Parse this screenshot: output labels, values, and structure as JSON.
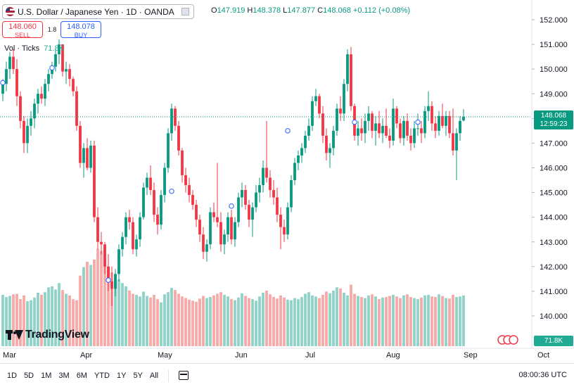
{
  "header": {
    "title": "U.S. Dollar / Japanese Yen · 1D · OANDA",
    "ohlc": {
      "o_label": "O",
      "o": "147.919",
      "h_label": "H",
      "h": "148.378",
      "l_label": "L",
      "l": "147.877",
      "c_label": "C",
      "c": "148.068",
      "change": "+0.112 (+0.08%)"
    }
  },
  "trade": {
    "sell_price": "148.060",
    "sell_label": "SELL",
    "spread": "1.8",
    "buy_price": "148.078",
    "buy_label": "BUY"
  },
  "volume_legend": {
    "label": "Vol · Ticks",
    "value": "71.8K"
  },
  "price_label": {
    "price": "148.068",
    "countdown": "12:59:23"
  },
  "volume_label": "71.8K",
  "logo_text": "TradingView",
  "bottom_bar": {
    "ranges": [
      "1D",
      "5D",
      "1M",
      "3M",
      "6M",
      "YTD",
      "1Y",
      "5Y",
      "All"
    ],
    "clock": "08:00:36 UTC"
  },
  "colors": {
    "up": "#089981",
    "down": "#f23645",
    "vol_up": "#8fd3c8",
    "vol_down": "#f7a9a7"
  },
  "chart_data": {
    "type": "candlestick",
    "symbol": "USDJPY",
    "interval": "1D",
    "ylim": [
      139.5,
      152.5
    ],
    "y_ticks": [
      "152.000",
      "151.000",
      "150.000",
      "149.000",
      "148.000",
      "147.000",
      "146.000",
      "145.000",
      "144.000",
      "143.000",
      "142.000",
      "141.000",
      "140.000"
    ],
    "x_ticks": [
      {
        "label": "Mar",
        "index": 0
      },
      {
        "label": "Apr",
        "index": 22
      },
      {
        "label": "May",
        "index": 44
      },
      {
        "label": "Jun",
        "index": 66
      },
      {
        "label": "Jul",
        "index": 86
      },
      {
        "label": "Aug",
        "index": 109
      },
      {
        "label": "Sep",
        "index": 131
      },
      {
        "label": "Oct",
        "index": 152
      }
    ],
    "last_price": 148.068,
    "candles": [
      [
        149.0,
        149.6,
        148.7,
        149.4
      ],
      [
        149.4,
        150.3,
        149.1,
        150.0
      ],
      [
        150.0,
        150.7,
        149.6,
        150.5
      ],
      [
        150.5,
        150.8,
        149.8,
        150.0
      ],
      [
        150.0,
        150.4,
        148.5,
        148.9
      ],
      [
        148.9,
        149.1,
        147.6,
        147.9
      ],
      [
        147.9,
        148.1,
        146.6,
        147.0
      ],
      [
        147.0,
        148.0,
        146.6,
        147.7
      ],
      [
        147.7,
        148.3,
        147.3,
        148.0
      ],
      [
        148.0,
        148.8,
        147.6,
        148.6
      ],
      [
        148.6,
        149.2,
        148.2,
        149.0
      ],
      [
        149.0,
        149.3,
        148.6,
        148.8
      ],
      [
        148.8,
        149.6,
        148.5,
        149.4
      ],
      [
        149.4,
        150.0,
        149.1,
        149.8
      ],
      [
        149.8,
        150.3,
        149.6,
        150.1
      ],
      [
        150.1,
        150.8,
        149.9,
        150.6
      ],
      [
        150.6,
        151.2,
        150.2,
        151.0
      ],
      [
        151.0,
        151.0,
        149.7,
        149.9
      ],
      [
        149.9,
        150.3,
        149.4,
        150.0
      ],
      [
        150.0,
        150.2,
        149.3,
        149.6
      ],
      [
        149.6,
        149.7,
        148.9,
        149.1
      ],
      [
        149.1,
        149.3,
        147.5,
        147.7
      ],
      [
        147.7,
        147.9,
        146.0,
        146.2
      ],
      [
        146.2,
        147.0,
        145.6,
        146.8
      ],
      [
        146.8,
        147.2,
        145.9,
        146.0
      ],
      [
        146.0,
        147.1,
        145.8,
        146.9
      ],
      [
        146.9,
        147.1,
        143.8,
        144.0
      ],
      [
        144.0,
        144.4,
        142.7,
        143.0
      ],
      [
        143.0,
        143.4,
        142.5,
        142.9
      ],
      [
        142.9,
        143.0,
        141.7,
        142.0
      ],
      [
        142.0,
        142.5,
        141.0,
        141.4
      ],
      [
        141.4,
        142.0,
        140.4,
        141.1
      ],
      [
        141.1,
        141.9,
        140.8,
        141.7
      ],
      [
        141.7,
        142.9,
        141.4,
        142.7
      ],
      [
        142.7,
        143.4,
        142.4,
        143.2
      ],
      [
        143.2,
        144.2,
        142.9,
        144.0
      ],
      [
        144.0,
        144.3,
        143.5,
        143.8
      ],
      [
        143.8,
        144.0,
        142.5,
        142.7
      ],
      [
        142.7,
        143.3,
        142.4,
        143.1
      ],
      [
        143.1,
        144.2,
        142.8,
        144.0
      ],
      [
        144.0,
        145.4,
        143.9,
        145.2
      ],
      [
        145.2,
        145.8,
        144.9,
        145.6
      ],
      [
        145.6,
        146.1,
        144.9,
        145.1
      ],
      [
        145.1,
        145.4,
        143.8,
        144.1
      ],
      [
        144.1,
        144.4,
        143.3,
        143.7
      ],
      [
        143.7,
        145.1,
        143.5,
        144.9
      ],
      [
        144.9,
        146.2,
        144.6,
        146.0
      ],
      [
        146.0,
        147.6,
        145.8,
        147.4
      ],
      [
        147.4,
        148.6,
        147.1,
        148.4
      ],
      [
        148.4,
        148.5,
        147.5,
        147.7
      ],
      [
        147.7,
        147.9,
        146.5,
        146.7
      ],
      [
        146.7,
        146.8,
        145.4,
        145.7
      ],
      [
        145.7,
        146.0,
        145.0,
        145.3
      ],
      [
        145.3,
        145.6,
        144.6,
        144.9
      ],
      [
        144.9,
        145.1,
        144.3,
        144.5
      ],
      [
        144.5,
        144.7,
        143.6,
        143.9
      ],
      [
        143.9,
        144.1,
        143.0,
        143.3
      ],
      [
        143.3,
        143.6,
        142.3,
        142.6
      ],
      [
        142.6,
        143.1,
        142.2,
        142.9
      ],
      [
        142.9,
        144.4,
        142.7,
        144.2
      ],
      [
        144.2,
        144.6,
        143.8,
        144.0
      ],
      [
        144.0,
        146.2,
        143.6,
        143.8
      ],
      [
        143.8,
        144.2,
        142.6,
        142.9
      ],
      [
        142.9,
        143.5,
        142.5,
        143.3
      ],
      [
        143.3,
        144.2,
        143.0,
        144.0
      ],
      [
        144.0,
        144.3,
        142.9,
        143.1
      ],
      [
        143.1,
        144.0,
        142.8,
        143.8
      ],
      [
        143.8,
        145.0,
        143.6,
        144.8
      ],
      [
        144.8,
        145.4,
        144.4,
        145.1
      ],
      [
        145.1,
        145.3,
        144.3,
        144.5
      ],
      [
        144.5,
        144.7,
        143.6,
        143.9
      ],
      [
        143.9,
        144.6,
        143.2,
        144.4
      ],
      [
        144.4,
        145.3,
        144.2,
        145.0
      ],
      [
        145.0,
        145.6,
        144.6,
        145.3
      ],
      [
        145.3,
        146.3,
        145.0,
        146.0
      ],
      [
        146.0,
        147.9,
        145.4,
        145.6
      ],
      [
        145.6,
        145.9,
        144.8,
        145.1
      ],
      [
        145.1,
        145.5,
        144.5,
        144.8
      ],
      [
        144.8,
        145.2,
        143.8,
        144.1
      ],
      [
        144.1,
        144.4,
        142.7,
        143.6
      ],
      [
        143.6,
        143.9,
        143.0,
        143.3
      ],
      [
        143.3,
        144.6,
        143.1,
        144.4
      ],
      [
        144.4,
        145.7,
        144.2,
        145.5
      ],
      [
        145.5,
        146.4,
        145.3,
        146.2
      ],
      [
        146.2,
        146.7,
        145.9,
        146.5
      ],
      [
        146.5,
        147.0,
        146.2,
        146.8
      ],
      [
        146.8,
        147.5,
        146.6,
        147.3
      ],
      [
        147.3,
        148.0,
        147.1,
        147.7
      ],
      [
        147.7,
        148.9,
        147.5,
        148.7
      ],
      [
        148.7,
        149.2,
        148.5,
        148.9
      ],
      [
        148.9,
        149.0,
        148.0,
        148.2
      ],
      [
        148.2,
        148.5,
        147.0,
        147.3
      ],
      [
        147.3,
        147.6,
        146.3,
        146.6
      ],
      [
        146.6,
        147.0,
        146.0,
        146.8
      ],
      [
        146.8,
        147.7,
        146.5,
        147.5
      ],
      [
        147.5,
        148.6,
        147.3,
        148.4
      ],
      [
        148.4,
        148.9,
        147.9,
        148.2
      ],
      [
        148.2,
        149.6,
        147.9,
        149.4
      ],
      [
        149.4,
        150.8,
        149.1,
        150.6
      ],
      [
        150.6,
        150.9,
        148.3,
        148.5
      ],
      [
        148.5,
        148.6,
        147.1,
        147.3
      ],
      [
        147.3,
        147.9,
        146.9,
        147.6
      ],
      [
        147.6,
        148.0,
        147.1,
        147.4
      ],
      [
        147.4,
        148.2,
        147.0,
        147.9
      ],
      [
        147.9,
        148.5,
        147.5,
        148.2
      ],
      [
        148.2,
        148.3,
        147.2,
        147.5
      ],
      [
        147.5,
        148.1,
        146.9,
        147.8
      ],
      [
        147.8,
        148.3,
        147.2,
        147.4
      ],
      [
        147.4,
        148.0,
        147.0,
        147.7
      ],
      [
        147.7,
        148.4,
        147.2,
        147.3
      ],
      [
        147.3,
        147.6,
        146.8,
        147.1
      ],
      [
        147.1,
        148.8,
        146.9,
        148.4
      ],
      [
        148.4,
        148.5,
        147.6,
        147.8
      ],
      [
        147.8,
        148.0,
        147.0,
        147.2
      ],
      [
        147.2,
        148.1,
        146.9,
        147.9
      ],
      [
        147.9,
        148.2,
        147.1,
        147.3
      ],
      [
        147.3,
        147.6,
        146.7,
        147.0
      ],
      [
        147.0,
        147.9,
        146.8,
        147.6
      ],
      [
        147.6,
        148.2,
        147.3,
        147.6
      ],
      [
        147.6,
        147.9,
        147.0,
        147.4
      ],
      [
        147.4,
        148.5,
        147.2,
        148.3
      ],
      [
        148.3,
        149.1,
        147.9,
        148.5
      ],
      [
        148.5,
        148.7,
        147.5,
        147.8
      ],
      [
        147.8,
        148.1,
        147.2,
        147.5
      ],
      [
        147.5,
        148.3,
        147.3,
        148.1
      ],
      [
        148.1,
        148.6,
        147.6,
        147.7
      ],
      [
        147.7,
        148.3,
        147.3,
        148.1
      ],
      [
        148.1,
        148.3,
        147.2,
        147.4
      ],
      [
        147.4,
        148.4,
        146.5,
        146.7
      ],
      [
        146.7,
        147.6,
        145.5,
        147.4
      ],
      [
        147.4,
        148.1,
        147.1,
        147.9
      ],
      [
        147.919,
        148.378,
        147.877,
        148.068
      ]
    ],
    "volume_ticks_k": [
      96,
      92,
      94,
      97,
      98,
      88,
      95,
      84,
      86,
      91,
      100,
      96,
      101,
      110,
      112,
      106,
      118,
      105,
      98,
      95,
      88,
      86,
      132,
      148,
      158,
      152,
      162,
      182,
      178,
      165,
      149,
      138,
      130,
      125,
      118,
      112,
      104,
      98,
      96,
      93,
      102,
      94,
      91,
      96,
      88,
      82,
      97,
      101,
      109,
      105,
      98,
      93,
      90,
      87,
      85,
      83,
      89,
      94,
      90,
      92,
      95,
      98,
      101,
      96,
      93,
      88,
      86,
      91,
      99,
      94,
      90,
      88,
      85,
      93,
      100,
      104,
      97,
      92,
      89,
      95,
      91,
      87,
      86,
      90,
      88,
      92,
      98,
      101,
      95,
      93,
      90,
      96,
      102,
      99,
      104,
      110,
      108,
      100,
      95,
      115,
      98,
      94,
      92,
      90,
      95,
      97,
      93,
      88,
      91,
      92,
      94,
      96,
      93,
      90,
      95,
      97,
      92,
      90,
      88,
      91,
      95,
      96,
      93,
      92,
      97,
      94,
      90,
      89,
      96,
      92,
      93,
      95,
      98,
      100,
      71.8
    ],
    "markers": [
      {
        "index": 0,
        "price": 149.45
      },
      {
        "index": 14,
        "price": 150.05
      },
      {
        "index": 30,
        "price": 141.45
      },
      {
        "index": 48,
        "price": 145.05
      },
      {
        "index": 65,
        "price": 144.45
      },
      {
        "index": 81,
        "price": 147.5
      },
      {
        "index": 100,
        "price": 147.85
      },
      {
        "index": 118,
        "price": 147.85
      }
    ]
  }
}
